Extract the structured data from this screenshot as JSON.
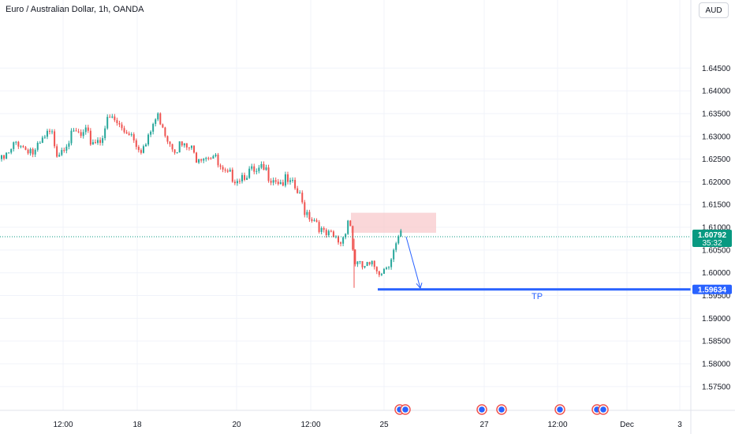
{
  "header": {
    "symbol_title": "Euro / Australian Dollar, 1h, OANDA",
    "currency_button": "AUD"
  },
  "colors": {
    "up": "#26a69a",
    "down": "#ef5350",
    "annotation": "#2962ff",
    "grid": "#f0f3fa",
    "price_line": "#089981",
    "zone": "#f8c9cc"
  },
  "price_label": {
    "value": "1.60792",
    "countdown": "35:32"
  },
  "tp_label": {
    "value": "1.59634",
    "text": "TP"
  },
  "chart_data": {
    "type": "candlestick",
    "title": "Euro / Australian Dollar, 1h, OANDA",
    "ylim": [
      1.5715,
      1.6565
    ],
    "ytick_labels": [
      "1.64500",
      "1.64000",
      "1.63500",
      "1.63000",
      "1.62500",
      "1.62000",
      "1.61500",
      "1.61000",
      "1.60500",
      "1.60000",
      "1.59500",
      "1.59000",
      "1.58500",
      "1.58000",
      "1.57500"
    ],
    "ytick_values": [
      1.645,
      1.64,
      1.635,
      1.63,
      1.625,
      1.62,
      1.615,
      1.61,
      1.605,
      1.6,
      1.595,
      1.59,
      1.585,
      1.58,
      1.575
    ],
    "xtick_labels": [
      "12:00",
      "18",
      "20",
      "12:00",
      "25",
      "27",
      "12:00",
      "Dec",
      "3"
    ],
    "xtick_index": [
      80,
      174,
      300,
      394,
      487,
      614,
      707,
      795,
      862
    ],
    "grid": true,
    "current_price": 1.60792,
    "tp_level": 1.59634,
    "supply_zone": {
      "low": 1.6088,
      "high": 1.6132
    },
    "projection": {
      "from": 1.6079,
      "to": 1.5966
    },
    "path": [
      [
        0,
        1.625
      ],
      [
        6,
        1.6262
      ],
      [
        12,
        1.6268
      ],
      [
        18,
        1.6292
      ],
      [
        24,
        1.6298
      ],
      [
        30,
        1.628
      ],
      [
        36,
        1.6285
      ],
      [
        42,
        1.6267
      ],
      [
        48,
        1.6282
      ],
      [
        54,
        1.6298
      ],
      [
        60,
        1.631
      ],
      [
        66,
        1.6308
      ],
      [
        72,
        1.6272
      ],
      [
        78,
        1.6288
      ],
      [
        84,
        1.63
      ],
      [
        90,
        1.6305
      ],
      [
        96,
        1.6315
      ],
      [
        102,
        1.6305
      ],
      [
        108,
        1.6312
      ],
      [
        114,
        1.6298
      ],
      [
        120,
        1.63
      ],
      [
        126,
        1.6302
      ],
      [
        132,
        1.633
      ],
      [
        138,
        1.6345
      ],
      [
        144,
        1.6342
      ],
      [
        150,
        1.633
      ],
      [
        156,
        1.632
      ],
      [
        162,
        1.6322
      ],
      [
        168,
        1.631
      ],
      [
        174,
        1.629
      ],
      [
        180,
        1.6282
      ],
      [
        186,
        1.6292
      ],
      [
        192,
        1.633
      ],
      [
        198,
        1.635
      ],
      [
        204,
        1.6345
      ],
      [
        210,
        1.631
      ],
      [
        216,
        1.6295
      ],
      [
        222,
        1.6285
      ],
      [
        228,
        1.6288
      ],
      [
        234,
        1.628
      ],
      [
        240,
        1.6282
      ],
      [
        246,
        1.6262
      ],
      [
        252,
        1.627
      ],
      [
        258,
        1.6268
      ],
      [
        264,
        1.627
      ],
      [
        270,
        1.6265
      ],
      [
        276,
        1.624
      ],
      [
        282,
        1.6222
      ],
      [
        288,
        1.6218
      ],
      [
        294,
        1.6222
      ],
      [
        300,
        1.6218
      ],
      [
        306,
        1.6224
      ],
      [
        312,
        1.623
      ],
      [
        318,
        1.6228
      ],
      [
        324,
        1.6222
      ],
      [
        330,
        1.6232
      ],
      [
        336,
        1.623
      ],
      [
        342,
        1.6222
      ],
      [
        348,
        1.6218
      ],
      [
        354,
        1.6208
      ],
      [
        360,
        1.621
      ],
      [
        366,
        1.62
      ],
      [
        372,
        1.6195
      ],
      [
        378,
        1.6178
      ],
      [
        384,
        1.615
      ],
      [
        390,
        1.614
      ],
      [
        396,
        1.6128
      ],
      [
        402,
        1.6122
      ],
      [
        408,
        1.609
      ],
      [
        414,
        1.6088
      ],
      [
        420,
        1.6085
      ],
      [
        426,
        1.608
      ],
      [
        432,
        1.6075
      ],
      [
        436,
        1.61
      ],
      [
        440,
        1.6128
      ],
      [
        444,
        1.611
      ],
      [
        447,
        1.6045
      ],
      [
        450,
        1.603
      ],
      [
        456,
        1.6018
      ],
      [
        462,
        1.6022
      ],
      [
        468,
        1.6018
      ],
      [
        474,
        1.6022
      ],
      [
        480,
        1.6015
      ],
      [
        486,
        1.6018
      ],
      [
        492,
        1.6035
      ],
      [
        498,
        1.6055
      ],
      [
        504,
        1.6075
      ],
      [
        507,
        1.609
      ],
      [
        510,
        1.6079
      ]
    ]
  }
}
